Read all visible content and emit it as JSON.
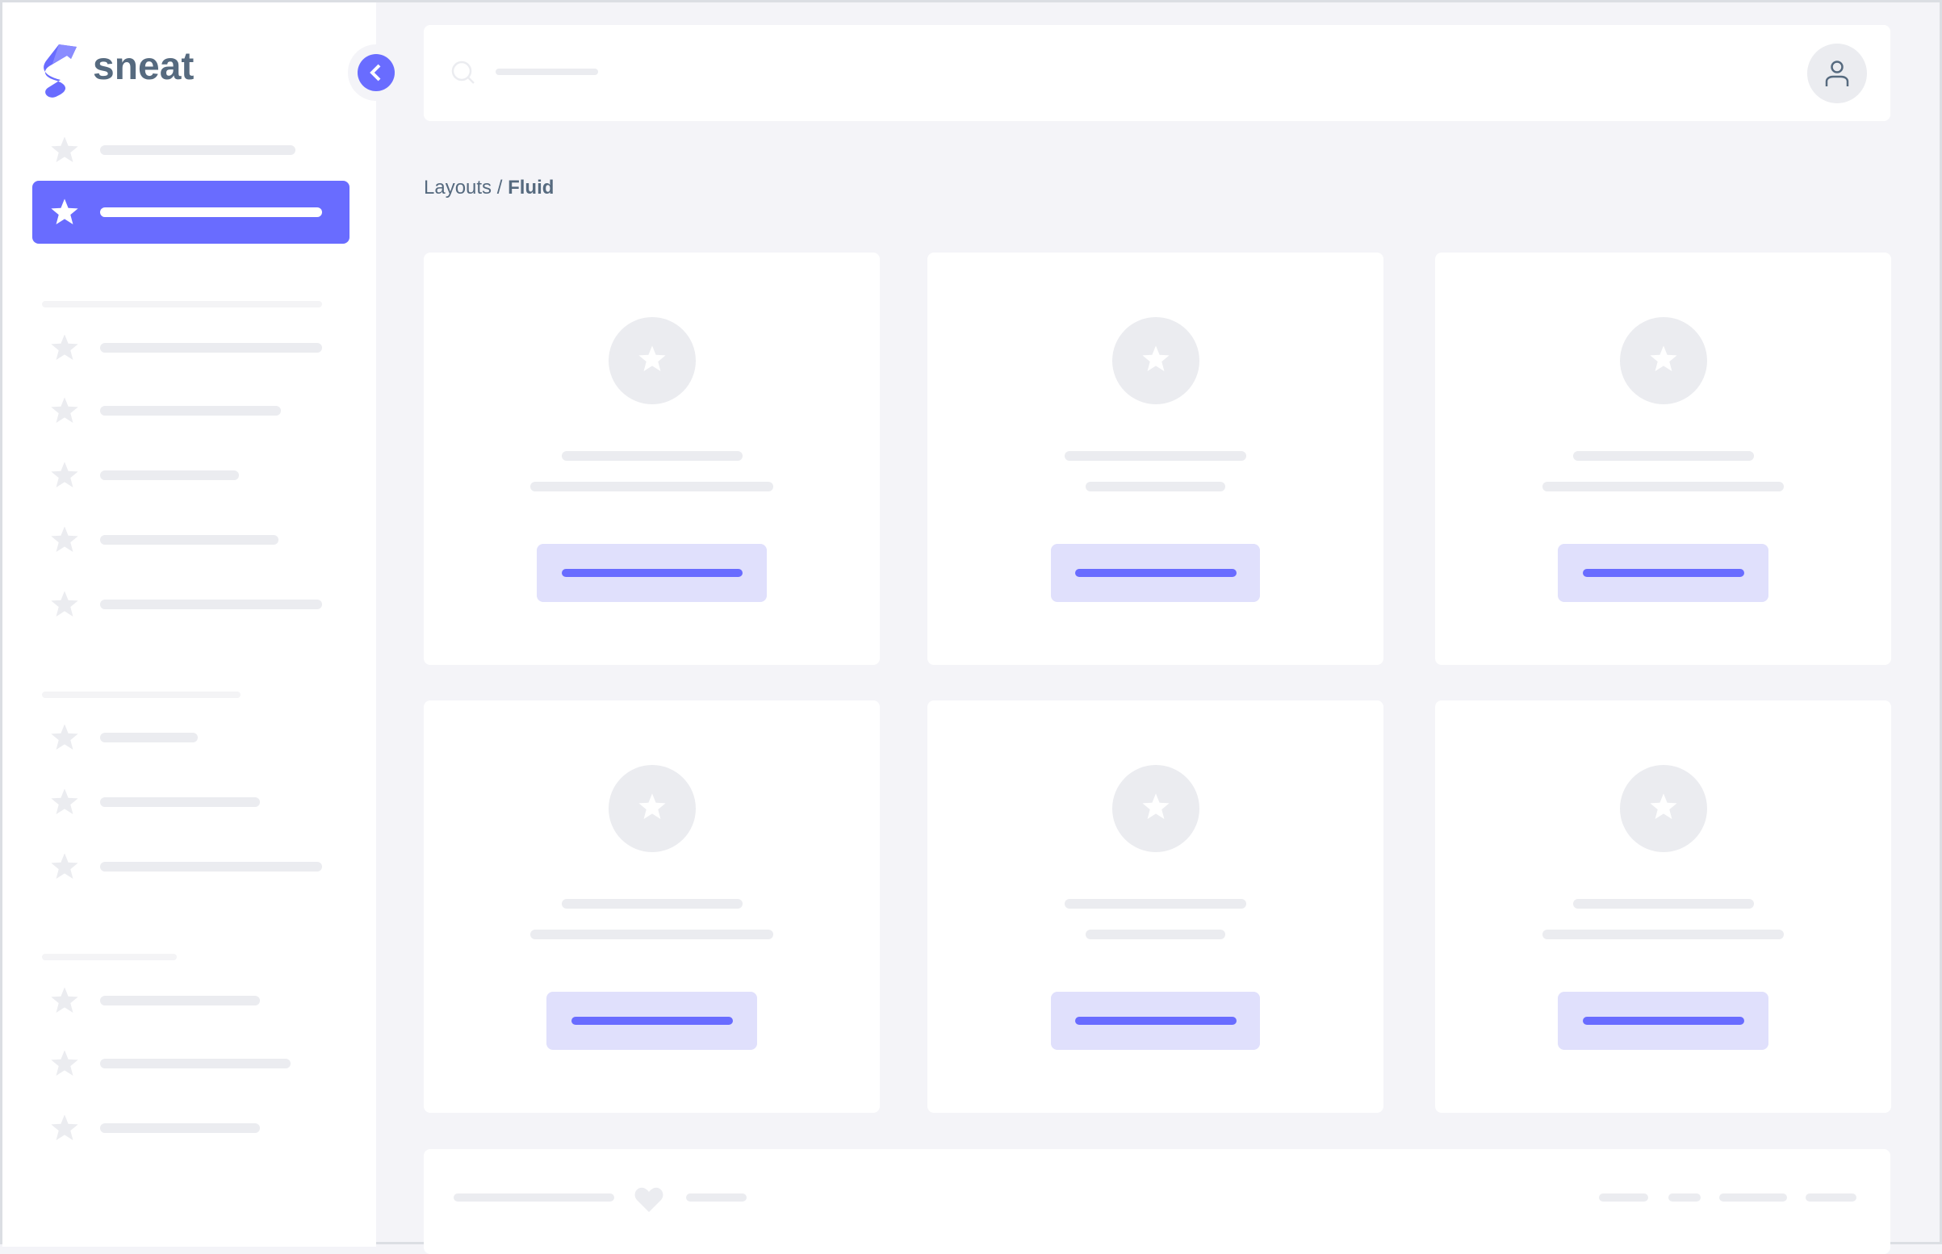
{
  "brand": {
    "name": "sneat",
    "accent": "#696cff",
    "text_color": "#566a7f"
  },
  "breadcrumb": {
    "parent": "Layouts",
    "separator": " / ",
    "current": "Fluid"
  },
  "sidebar": {
    "active_index": 1,
    "icons": "star-icon"
  },
  "cards": {
    "icon": "star-icon",
    "count": 6
  },
  "footer": {
    "icon": "heart-icon"
  }
}
